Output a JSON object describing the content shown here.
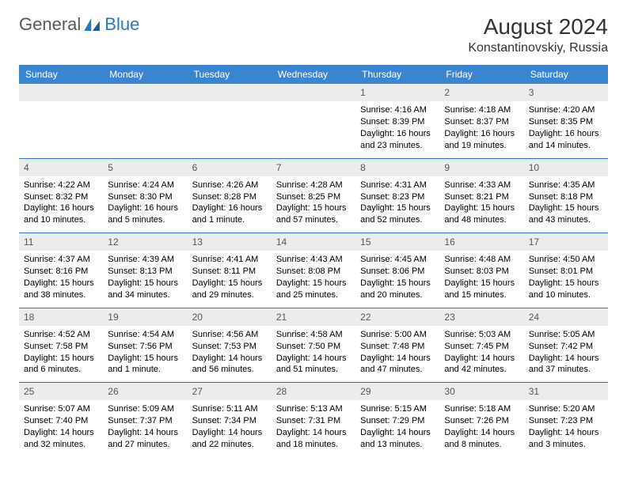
{
  "logo": {
    "text1": "General",
    "text2": "Blue"
  },
  "title": "August 2024",
  "location": "Konstantinovskiy, Russia",
  "theme": {
    "header_bg": "#3a85d0",
    "day_bg": "#ececec",
    "sep_color": "#2b78c2",
    "text_color": "#000000"
  },
  "dayNames": [
    "Sunday",
    "Monday",
    "Tuesday",
    "Wednesday",
    "Thursday",
    "Friday",
    "Saturday"
  ],
  "weeks": [
    [
      null,
      null,
      null,
      null,
      {
        "n": "1",
        "sr": "4:16 AM",
        "ss": "8:39 PM",
        "dl": "16 hours and 23 minutes."
      },
      {
        "n": "2",
        "sr": "4:18 AM",
        "ss": "8:37 PM",
        "dl": "16 hours and 19 minutes."
      },
      {
        "n": "3",
        "sr": "4:20 AM",
        "ss": "8:35 PM",
        "dl": "16 hours and 14 minutes."
      }
    ],
    [
      {
        "n": "4",
        "sr": "4:22 AM",
        "ss": "8:32 PM",
        "dl": "16 hours and 10 minutes."
      },
      {
        "n": "5",
        "sr": "4:24 AM",
        "ss": "8:30 PM",
        "dl": "16 hours and 5 minutes."
      },
      {
        "n": "6",
        "sr": "4:26 AM",
        "ss": "8:28 PM",
        "dl": "16 hours and 1 minute."
      },
      {
        "n": "7",
        "sr": "4:28 AM",
        "ss": "8:25 PM",
        "dl": "15 hours and 57 minutes."
      },
      {
        "n": "8",
        "sr": "4:31 AM",
        "ss": "8:23 PM",
        "dl": "15 hours and 52 minutes."
      },
      {
        "n": "9",
        "sr": "4:33 AM",
        "ss": "8:21 PM",
        "dl": "15 hours and 48 minutes."
      },
      {
        "n": "10",
        "sr": "4:35 AM",
        "ss": "8:18 PM",
        "dl": "15 hours and 43 minutes."
      }
    ],
    [
      {
        "n": "11",
        "sr": "4:37 AM",
        "ss": "8:16 PM",
        "dl": "15 hours and 38 minutes."
      },
      {
        "n": "12",
        "sr": "4:39 AM",
        "ss": "8:13 PM",
        "dl": "15 hours and 34 minutes."
      },
      {
        "n": "13",
        "sr": "4:41 AM",
        "ss": "8:11 PM",
        "dl": "15 hours and 29 minutes."
      },
      {
        "n": "14",
        "sr": "4:43 AM",
        "ss": "8:08 PM",
        "dl": "15 hours and 25 minutes."
      },
      {
        "n": "15",
        "sr": "4:45 AM",
        "ss": "8:06 PM",
        "dl": "15 hours and 20 minutes."
      },
      {
        "n": "16",
        "sr": "4:48 AM",
        "ss": "8:03 PM",
        "dl": "15 hours and 15 minutes."
      },
      {
        "n": "17",
        "sr": "4:50 AM",
        "ss": "8:01 PM",
        "dl": "15 hours and 10 minutes."
      }
    ],
    [
      {
        "n": "18",
        "sr": "4:52 AM",
        "ss": "7:58 PM",
        "dl": "15 hours and 6 minutes."
      },
      {
        "n": "19",
        "sr": "4:54 AM",
        "ss": "7:56 PM",
        "dl": "15 hours and 1 minute."
      },
      {
        "n": "20",
        "sr": "4:56 AM",
        "ss": "7:53 PM",
        "dl": "14 hours and 56 minutes."
      },
      {
        "n": "21",
        "sr": "4:58 AM",
        "ss": "7:50 PM",
        "dl": "14 hours and 51 minutes."
      },
      {
        "n": "22",
        "sr": "5:00 AM",
        "ss": "7:48 PM",
        "dl": "14 hours and 47 minutes."
      },
      {
        "n": "23",
        "sr": "5:03 AM",
        "ss": "7:45 PM",
        "dl": "14 hours and 42 minutes."
      },
      {
        "n": "24",
        "sr": "5:05 AM",
        "ss": "7:42 PM",
        "dl": "14 hours and 37 minutes."
      }
    ],
    [
      {
        "n": "25",
        "sr": "5:07 AM",
        "ss": "7:40 PM",
        "dl": "14 hours and 32 minutes."
      },
      {
        "n": "26",
        "sr": "5:09 AM",
        "ss": "7:37 PM",
        "dl": "14 hours and 27 minutes."
      },
      {
        "n": "27",
        "sr": "5:11 AM",
        "ss": "7:34 PM",
        "dl": "14 hours and 22 minutes."
      },
      {
        "n": "28",
        "sr": "5:13 AM",
        "ss": "7:31 PM",
        "dl": "14 hours and 18 minutes."
      },
      {
        "n": "29",
        "sr": "5:15 AM",
        "ss": "7:29 PM",
        "dl": "14 hours and 13 minutes."
      },
      {
        "n": "30",
        "sr": "5:18 AM",
        "ss": "7:26 PM",
        "dl": "14 hours and 8 minutes."
      },
      {
        "n": "31",
        "sr": "5:20 AM",
        "ss": "7:23 PM",
        "dl": "14 hours and 3 minutes."
      }
    ]
  ],
  "labels": {
    "sunrise": "Sunrise: ",
    "sunset": "Sunset: ",
    "daylight": "Daylight: "
  }
}
